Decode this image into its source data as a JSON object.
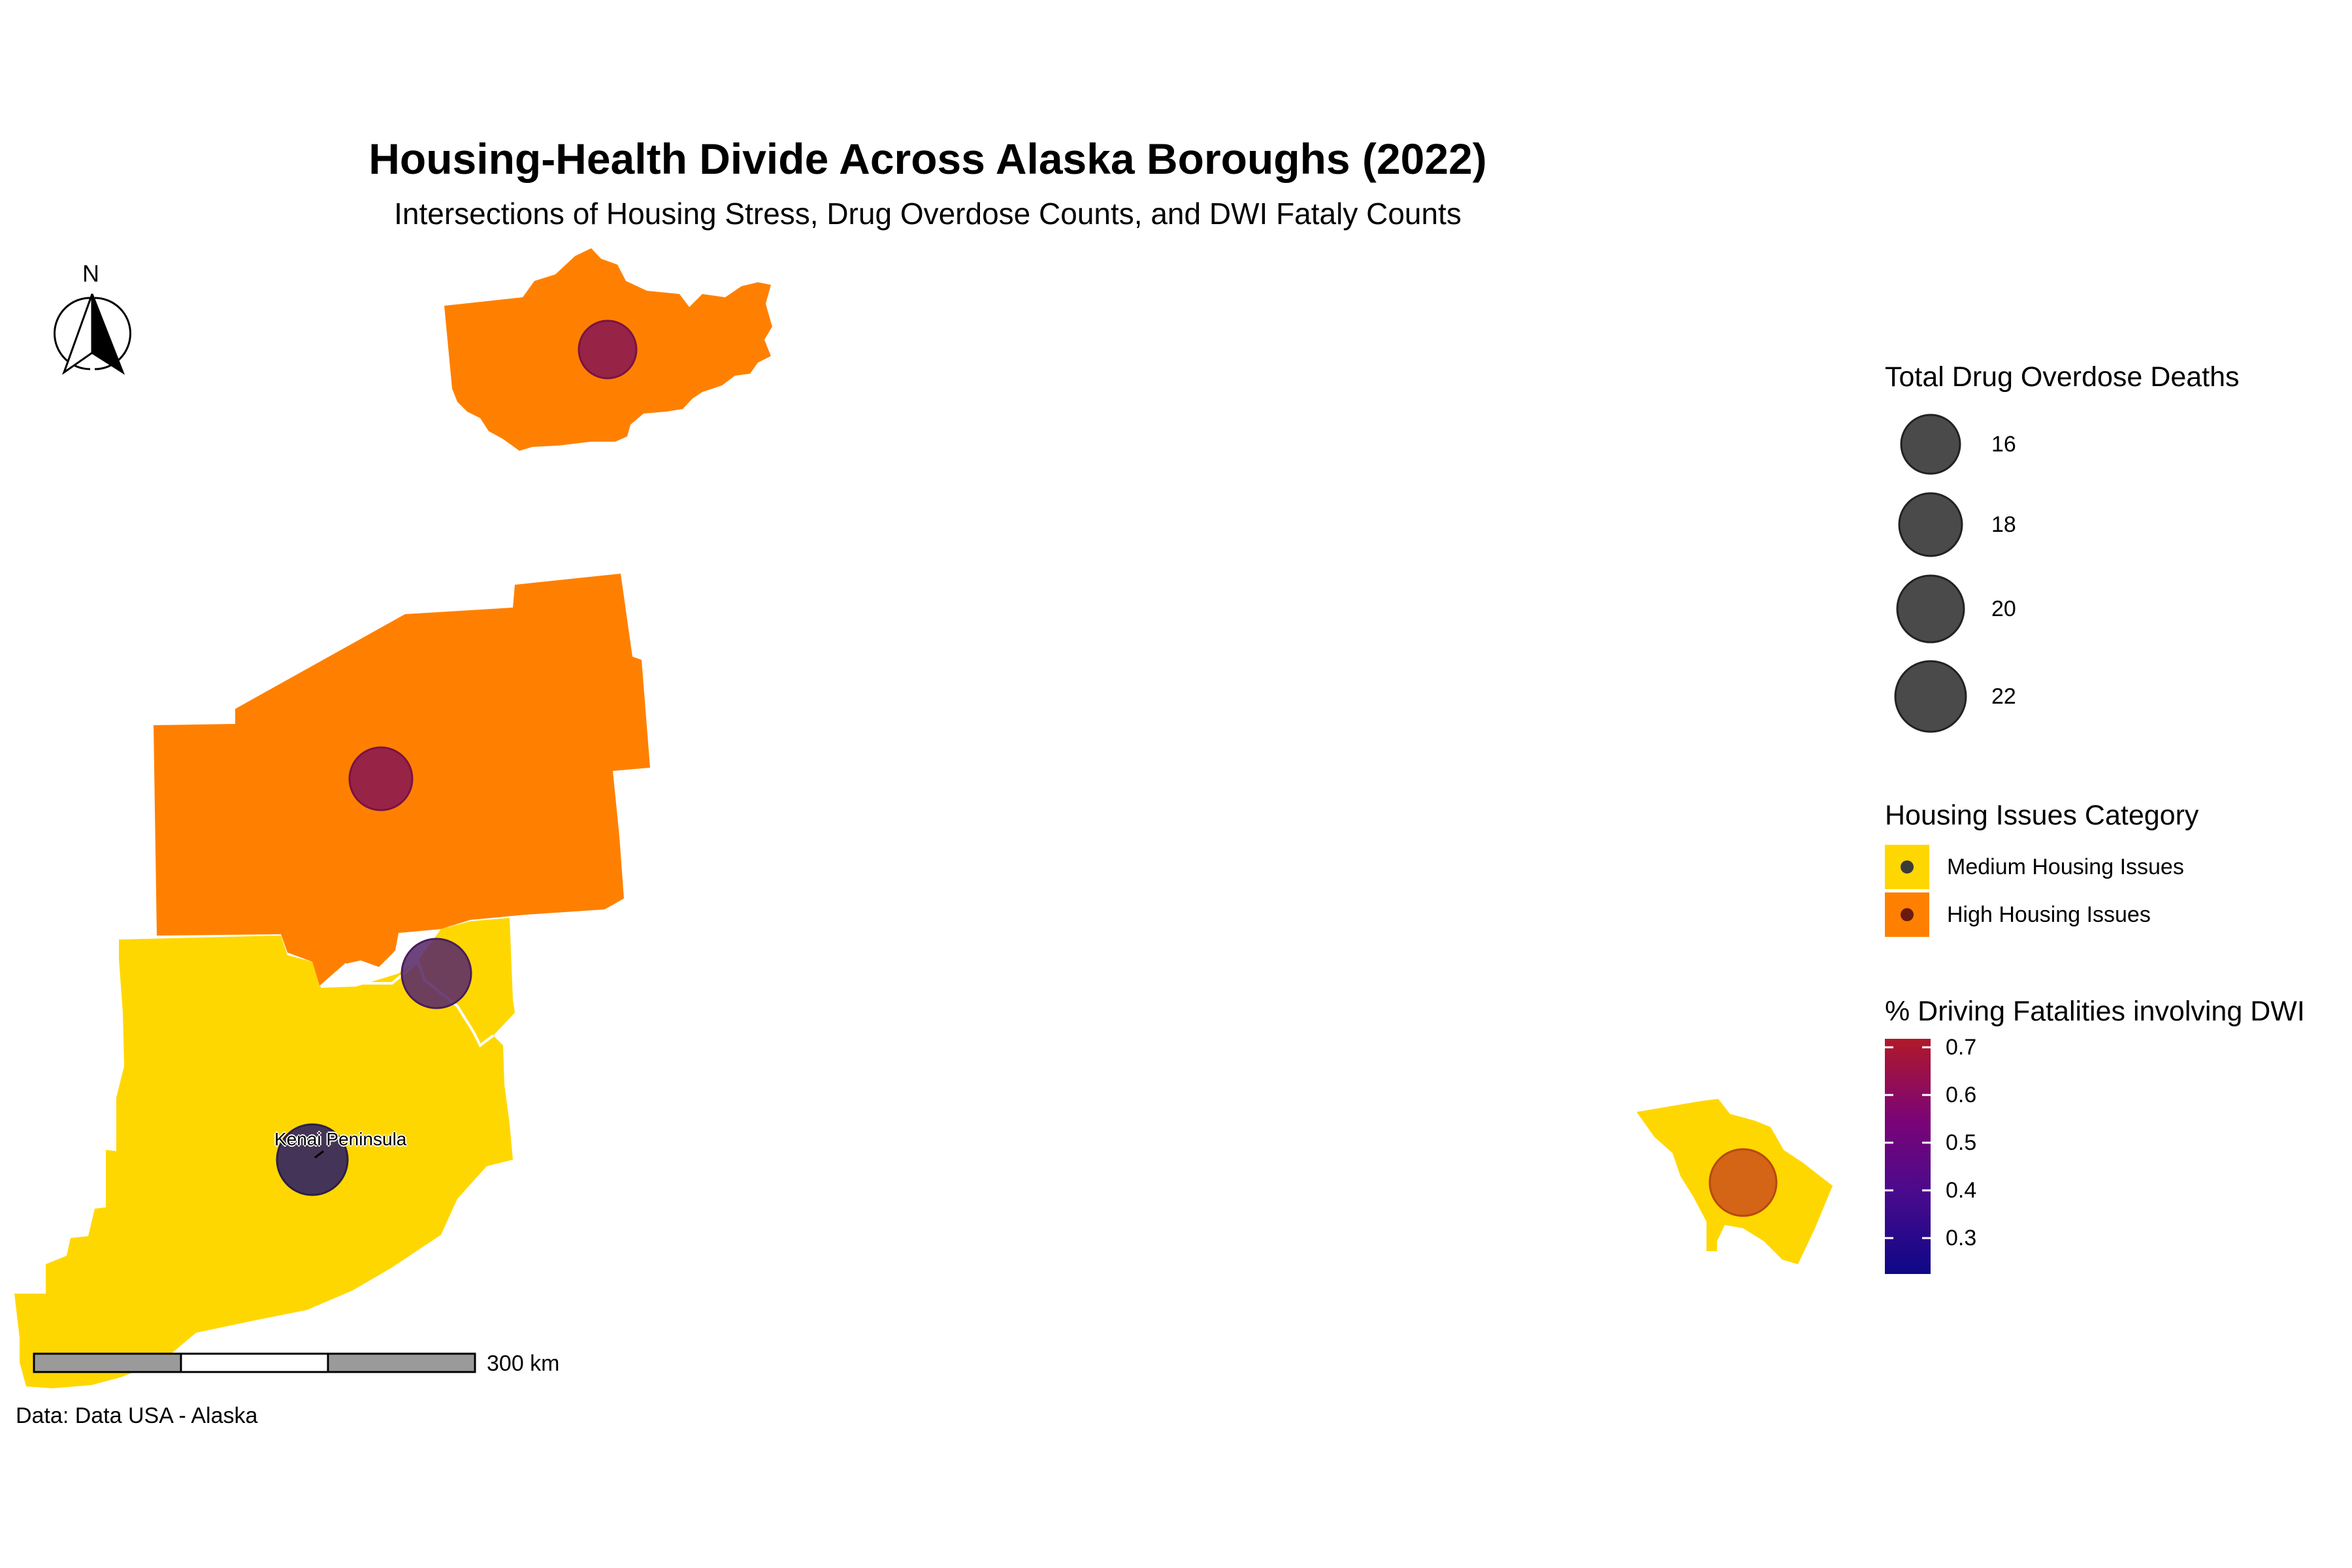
{
  "title": "Housing-Health Divide Across Alaska Boroughs (2022)",
  "subtitle": "Intersections of Housing Stress, Drug Overdose Counts, and DWI Fataly Counts",
  "caption": "Data: Data USA - Alaska",
  "north_arrow": {
    "label": "N"
  },
  "scale_bar": {
    "label": "300 km"
  },
  "legends": {
    "size": {
      "title": "Total Drug Overdose Deaths",
      "values": [
        "16",
        "18",
        "20",
        "22"
      ]
    },
    "category": {
      "title": "Housing Issues Category",
      "items": [
        {
          "label": "Medium Housing Issues",
          "color": "#FFD700"
        },
        {
          "label": "High Housing Issues",
          "color": "#FF8000"
        }
      ]
    },
    "color": {
      "title": "% Driving Fatalities involving DWI",
      "ticks": [
        "0.7",
        "0.6",
        "0.5",
        "0.4",
        "0.3"
      ],
      "low_color": "#0D0887",
      "mid_color": "#7A0477",
      "high_color": "#B0192A"
    }
  },
  "map_labels": {
    "kenai": "Kenai Peninsula"
  },
  "colors": {
    "medium": "#FFD700",
    "high": "#FF8000",
    "bubble_edge": "#3a3a3a"
  }
}
